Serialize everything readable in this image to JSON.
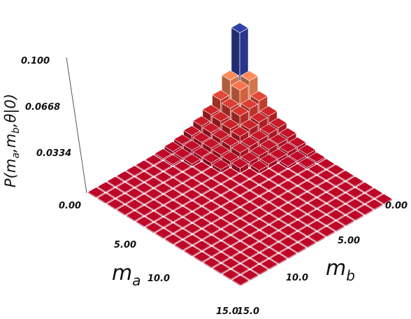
{
  "chart_data": {
    "type": "bar3d",
    "x_axis": {
      "label": "m",
      "label_subscript": "a",
      "range": [
        0,
        15
      ],
      "ticks": [
        "0.00",
        "5.00",
        "10.0",
        "15.0"
      ]
    },
    "y_axis": {
      "label": "m",
      "label_subscript": "b",
      "range": [
        0,
        15
      ],
      "ticks": [
        "0.00",
        "5.00",
        "10.0",
        "15.0"
      ]
    },
    "z_axis": {
      "label": "P(m",
      "label_parts": [
        "P(m",
        "a",
        ",m",
        "b",
        ",θ|0)"
      ],
      "range": [
        0,
        0.1
      ],
      "ticks": [
        "0.00",
        "0.0334",
        "0.0668",
        "0.100"
      ]
    },
    "grid": false,
    "colormap": "red-yellow-blue",
    "colors": {
      "low": "#b40426",
      "mid": "#f7dc9e",
      "high": "#2f3d9e",
      "floor": "#b50a2b",
      "grid_lines": "#ffffff",
      "axis_line": "#333333"
    },
    "description_of_values": "value at (m_a, m_b) grid cell",
    "grid_size": 16,
    "nonzero": [
      [
        0,
        0,
        0.1
      ],
      [
        1,
        0,
        0.05
      ],
      [
        0,
        1,
        0.05
      ],
      [
        1,
        1,
        0.045
      ],
      [
        2,
        0,
        0.033
      ],
      [
        0,
        2,
        0.033
      ],
      [
        2,
        1,
        0.03
      ],
      [
        1,
        2,
        0.03
      ],
      [
        2,
        2,
        0.028
      ],
      [
        3,
        0,
        0.022
      ],
      [
        0,
        3,
        0.022
      ],
      [
        3,
        1,
        0.021
      ],
      [
        1,
        3,
        0.021
      ],
      [
        3,
        2,
        0.019
      ],
      [
        2,
        3,
        0.019
      ],
      [
        3,
        3,
        0.017
      ],
      [
        4,
        0,
        0.015
      ],
      [
        0,
        4,
        0.015
      ],
      [
        4,
        1,
        0.014
      ],
      [
        1,
        4,
        0.014
      ],
      [
        4,
        2,
        0.013
      ],
      [
        2,
        4,
        0.013
      ],
      [
        4,
        3,
        0.012
      ],
      [
        3,
        4,
        0.012
      ],
      [
        4,
        4,
        0.011
      ],
      [
        5,
        0,
        0.01
      ],
      [
        0,
        5,
        0.01
      ],
      [
        5,
        1,
        0.009
      ],
      [
        1,
        5,
        0.009
      ],
      [
        5,
        2,
        0.009
      ],
      [
        2,
        5,
        0.009
      ],
      [
        5,
        3,
        0.008
      ],
      [
        3,
        5,
        0.008
      ],
      [
        5,
        4,
        0.007
      ],
      [
        4,
        5,
        0.007
      ],
      [
        5,
        5,
        0.006
      ],
      [
        6,
        0,
        0.006
      ],
      [
        0,
        6,
        0.006
      ],
      [
        6,
        1,
        0.006
      ],
      [
        1,
        6,
        0.006
      ],
      [
        6,
        2,
        0.005
      ],
      [
        2,
        6,
        0.005
      ],
      [
        6,
        3,
        0.005
      ],
      [
        3,
        6,
        0.005
      ],
      [
        6,
        4,
        0.004
      ],
      [
        4,
        6,
        0.004
      ],
      [
        7,
        0,
        0.004
      ],
      [
        0,
        7,
        0.004
      ],
      [
        7,
        1,
        0.003
      ],
      [
        1,
        7,
        0.003
      ],
      [
        7,
        2,
        0.003
      ],
      [
        2,
        7,
        0.003
      ],
      [
        8,
        0,
        0.002
      ],
      [
        0,
        8,
        0.002
      ],
      [
        8,
        1,
        0.002
      ],
      [
        1,
        8,
        0.002
      ]
    ]
  }
}
